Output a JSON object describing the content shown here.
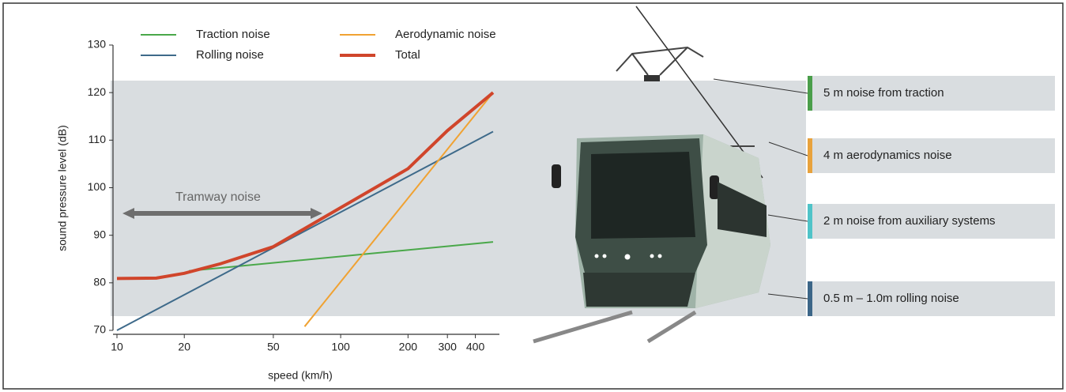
{
  "chart_data": {
    "type": "line",
    "xlabel": "speed (km/h)",
    "ylabel": "sound pressure level (dB)",
    "xscale": "log",
    "xlim": [
      10,
      500
    ],
    "xticks": [
      10,
      20,
      50,
      100,
      200,
      300,
      400
    ],
    "ylim": [
      70,
      130
    ],
    "yticks": [
      70,
      80,
      90,
      100,
      110,
      120,
      130
    ],
    "series": [
      {
        "name": "Traction noise",
        "color": "#4aa84a",
        "x": [
          21,
          480
        ],
        "values": [
          82.5,
          88.6
        ]
      },
      {
        "name": "Rolling noise",
        "color": "#3e6a8a",
        "x": [
          10,
          480
        ],
        "values": [
          70,
          111.8
        ]
      },
      {
        "name": "Aerodynamic noise",
        "color": "#f0a232",
        "x": [
          69,
          480
        ],
        "values": [
          70.8,
          120
        ]
      },
      {
        "name": "Total",
        "color": "#d0452b",
        "x": [
          10,
          15,
          20,
          29,
          50,
          100,
          200,
          300,
          480
        ],
        "values": [
          80.9,
          81,
          82,
          84,
          87.6,
          95.8,
          104,
          112,
          120
        ]
      }
    ],
    "annotation": "Tramway noise",
    "callouts": [
      {
        "label": "5 m noise from traction",
        "color": "#4a9e4a"
      },
      {
        "label": "4 m aerodynamics noise",
        "color": "#e8a23c"
      },
      {
        "label": "2 m noise from auxiliary systems",
        "color": "#4fc3c8"
      },
      {
        "label": "0.5 m – 1.0m rolling noise",
        "color": "#3c6688"
      }
    ]
  }
}
